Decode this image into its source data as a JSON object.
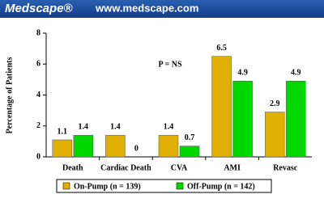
{
  "header": {
    "logo": "Medscape®",
    "url": "www.medscape.com"
  },
  "chart_data": {
    "type": "bar",
    "y_label": "Percentage of Patients",
    "annotation": "P = NS",
    "categories": [
      "Death",
      "Cardiac Death",
      "CVA",
      "AMI",
      "Revasc"
    ],
    "series": [
      {
        "name": "On-Pump (n = 139)",
        "color": "#e0b000",
        "values": [
          1.1,
          1.4,
          1.4,
          6.5,
          2.9
        ]
      },
      {
        "name": "Off-Pump (n = 142)",
        "color": "#00d800",
        "values": [
          1.4,
          0,
          0.7,
          4.9,
          4.9
        ]
      }
    ],
    "ylim": [
      0,
      8
    ],
    "yticks": [
      0,
      2,
      4,
      6,
      8
    ],
    "legend": "bottom"
  }
}
